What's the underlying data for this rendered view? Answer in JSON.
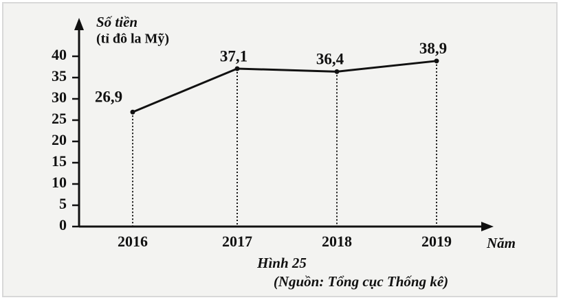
{
  "chart_data": {
    "type": "line",
    "ylabel": "Số tiền",
    "yunit": "(tỉ đô la Mỹ)",
    "xlabel": "Năm",
    "caption": "Hình 25",
    "source": "(Nguồn: Tổng cục Thống kê)",
    "categories": [
      "2016",
      "2017",
      "2018",
      "2019"
    ],
    "values": [
      26.9,
      37.1,
      36.4,
      38.9
    ],
    "value_labels": [
      "26,9",
      "37,1",
      "36,4",
      "38,9"
    ],
    "color": "#111111",
    "ylim": [
      0,
      40
    ],
    "yticks": [
      0,
      5,
      10,
      15,
      20,
      25,
      30,
      35,
      40
    ]
  }
}
